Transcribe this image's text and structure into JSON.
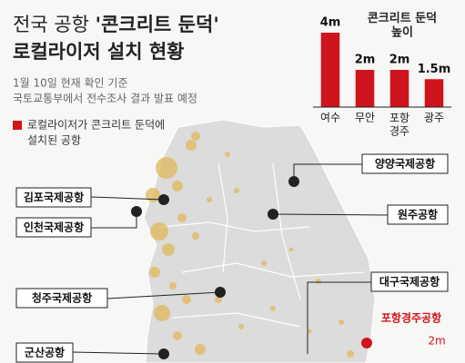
{
  "header": {
    "title_line1_prefix": "전국 공항",
    "title_line1_emphasis": "'콘크리트 둔덕'",
    "title_line2": "로컬라이저 설치 현황",
    "notes": [
      "1월 10일 현재 확인 기준",
      "국토교통부에서 전수조사 결과 발표 예정"
    ]
  },
  "legend": {
    "lines": [
      "로컬라이저가 콘크리트 둔덕에",
      "설치된 공항"
    ]
  },
  "airports": [
    "김포국제공항",
    "인천국제공항",
    "청주국제공항",
    "군산공항",
    "양양국제공항",
    "원주공항",
    "대구국제공항"
  ],
  "highlighted_airport": {
    "name": "포항경주공항",
    "height": "2m"
  },
  "chart_data": {
    "type": "bar",
    "title": "콘크리트 둔덕\n높이",
    "categories": [
      "여수",
      "무안",
      "포항\n경주",
      "광주"
    ],
    "values": [
      4,
      2,
      2,
      1.5
    ],
    "value_labels": [
      "4m",
      "2m",
      "2m",
      "1.5m"
    ],
    "color": "#d0141b",
    "ylim": [
      0,
      4
    ]
  }
}
